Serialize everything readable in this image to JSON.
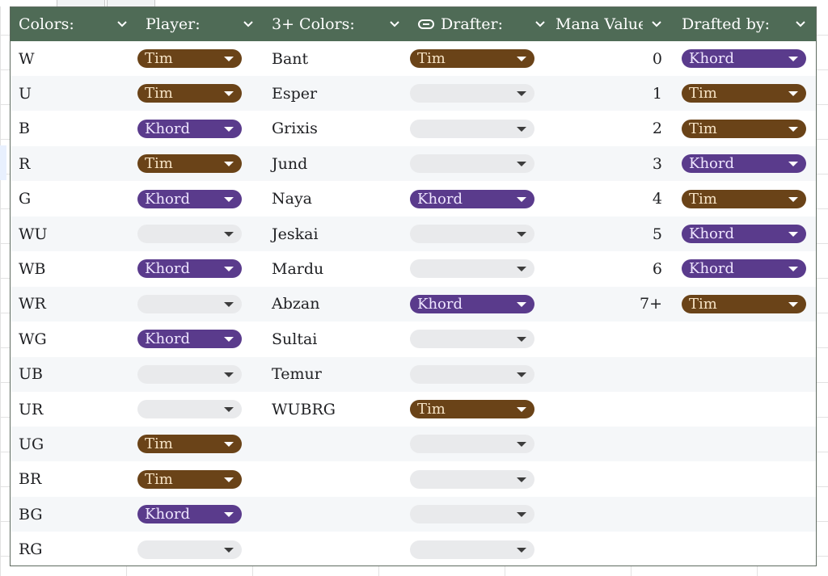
{
  "headers": {
    "colors": "Colors:",
    "player": "Player:",
    "three_colors": "3+ Colors:",
    "drafter": "Drafter:",
    "mana_values": "Mana Values",
    "drafted_by": "Drafted by:"
  },
  "colors": {
    "header_bg": "#4f6b56",
    "tim_chip": "#6a4318",
    "khord_chip": "#5a3b8c",
    "empty_chip": "#e9eaec",
    "alt_row": "#f5f7f9"
  },
  "rows": [
    {
      "color": "W",
      "player": "Tim",
      "three": "Bant",
      "drafter": "Tim",
      "mana": "0",
      "drafted_by": "Khord"
    },
    {
      "color": "U",
      "player": "Tim",
      "three": "Esper",
      "drafter": "",
      "mana": "1",
      "drafted_by": "Tim"
    },
    {
      "color": "B",
      "player": "Khord",
      "three": "Grixis",
      "drafter": "",
      "mana": "2",
      "drafted_by": "Tim"
    },
    {
      "color": "R",
      "player": "Tim",
      "three": "Jund",
      "drafter": "",
      "mana": "3",
      "drafted_by": "Khord"
    },
    {
      "color": "G",
      "player": "Khord",
      "three": "Naya",
      "drafter": "Khord",
      "mana": "4",
      "drafted_by": "Tim"
    },
    {
      "color": "WU",
      "player": "",
      "three": "Jeskai",
      "drafter": "",
      "mana": "5",
      "drafted_by": "Khord"
    },
    {
      "color": "WB",
      "player": "Khord",
      "three": "Mardu",
      "drafter": "",
      "mana": "6",
      "drafted_by": "Khord"
    },
    {
      "color": "WR",
      "player": "",
      "three": "Abzan",
      "drafter": "Khord",
      "mana": "7+",
      "drafted_by": "Tim"
    },
    {
      "color": "WG",
      "player": "Khord",
      "three": "Sultai",
      "drafter": "",
      "mana": null,
      "drafted_by": null
    },
    {
      "color": "UB",
      "player": "",
      "three": "Temur",
      "drafter": "",
      "mana": null,
      "drafted_by": null
    },
    {
      "color": "UR",
      "player": "",
      "three": "WUBRG",
      "drafter": "Tim",
      "mana": null,
      "drafted_by": null
    },
    {
      "color": "UG",
      "player": "Tim",
      "three": null,
      "drafter": "",
      "mana": null,
      "drafted_by": null
    },
    {
      "color": "BR",
      "player": "Tim",
      "three": null,
      "drafter": "",
      "mana": null,
      "drafted_by": null
    },
    {
      "color": "BG",
      "player": "Khord",
      "three": null,
      "drafter": "",
      "mana": null,
      "drafted_by": null
    },
    {
      "color": "RG",
      "player": "",
      "three": null,
      "drafter": "",
      "mana": null,
      "drafted_by": null
    }
  ]
}
